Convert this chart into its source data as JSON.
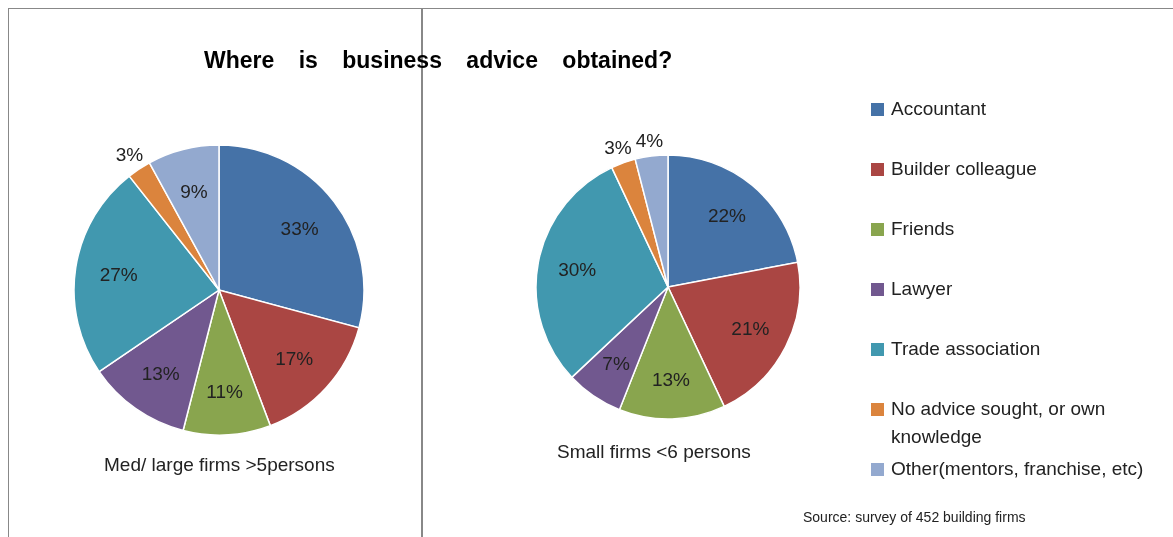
{
  "chart_data": [
    {
      "type": "pie",
      "title": "Where is business advice obtained?",
      "categories": [
        null,
        null,
        null,
        null,
        null,
        null,
        null
      ],
      "values": [
        33,
        17,
        11,
        13,
        27,
        3,
        9
      ],
      "value_labels": [
        "33%",
        "17%",
        "11%",
        "13%",
        "27%",
        "3%",
        "9%"
      ],
      "colors": [
        "#4572a7",
        "#aa4643",
        "#89a54e",
        "#71588f",
        "#4198af",
        "#db843d",
        "#93a9cf"
      ],
      "annotations": [
        "Med/ large firms >5persons"
      ]
    },
    {
      "type": "pie",
      "categories": [
        "Accountant",
        "Builder colleague",
        "Friends",
        "Lawyer",
        "Trade association",
        "No advice sought, or own knowledge",
        "Other(mentors, franchise, etc)"
      ],
      "values": [
        22,
        21,
        13,
        7,
        30,
        3,
        4
      ],
      "value_labels": [
        "22%",
        "21%",
        "13%",
        "7%",
        "30%",
        "3%",
        "4%"
      ],
      "colors": [
        "#4572a7",
        "#aa4643",
        "#89a54e",
        "#71588f",
        "#4198af",
        "#db843d",
        "#93a9cf"
      ],
      "legend": "right",
      "annotations": [
        "Small firms <6 persons",
        "Source: survey of 452 building firms"
      ]
    }
  ]
}
